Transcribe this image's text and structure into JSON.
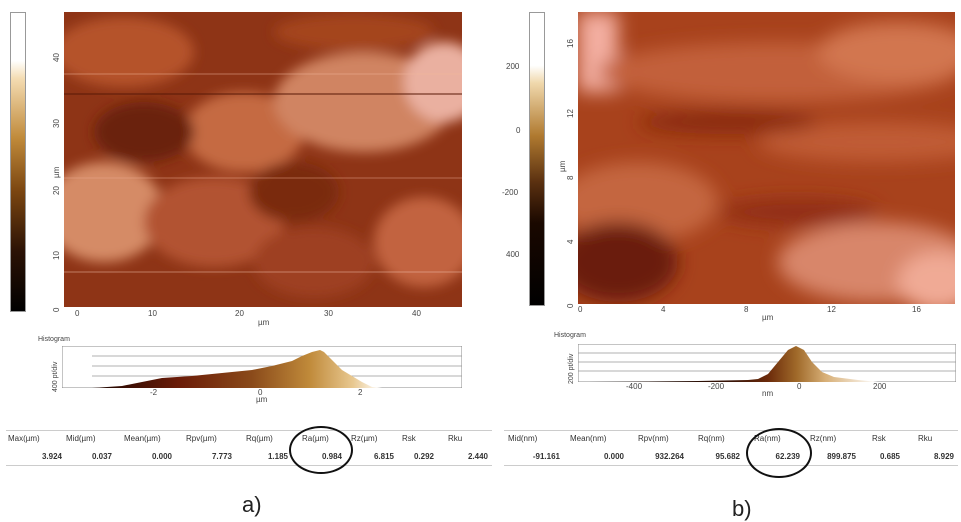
{
  "panel_a": {
    "label": "a)",
    "colorbar_colors": [
      "#ffffff",
      "#f4dcb2",
      "#c08a3a",
      "#7a4510",
      "#2b1205",
      "#000000"
    ],
    "map_colors": [
      "#5a1a08",
      "#9a3d1c",
      "#c86b45",
      "#eaa78c"
    ],
    "y_ticks": [
      "0",
      "10",
      "20",
      "30",
      "40"
    ],
    "y_unit": "µm",
    "x_ticks": [
      "0",
      "10",
      "20",
      "30",
      "40"
    ],
    "x_unit": "µm",
    "histogram": {
      "title": "Histogram",
      "y_label": "400 pt/div",
      "x_ticks": [
        "-2",
        "0",
        "2"
      ],
      "x_unit": "µm"
    },
    "stats": {
      "headers": [
        "Max(µm)",
        "Mid(µm)",
        "Mean(µm)",
        "Rpv(µm)",
        "Rq(µm)",
        "Ra(µm)",
        "Rz(µm)",
        "Rsk",
        "Rku"
      ],
      "values": [
        "3.924",
        "0.037",
        "0.000",
        "7.773",
        "1.185",
        "0.984",
        "6.815",
        "0.292",
        "2.440"
      ]
    }
  },
  "panel_b": {
    "label": "b)",
    "colorbar_ticks": [
      "200",
      "0",
      "-200",
      "400"
    ],
    "map_colors": [
      "#6b1c08",
      "#a5401a",
      "#d27650",
      "#f0aa90"
    ],
    "y_ticks": [
      "0",
      "4",
      "8",
      "12",
      "16"
    ],
    "y_unit": "µm",
    "x_ticks": [
      "0",
      "4",
      "8",
      "12",
      "16"
    ],
    "x_unit": "µm",
    "histogram": {
      "title": "Histogram",
      "y_label": "200 pt/div",
      "x_ticks": [
        "-400",
        "-200",
        "0",
        "200"
      ],
      "x_unit": "nm"
    },
    "stats": {
      "headers": [
        "Mid(nm)",
        "Mean(nm)",
        "Rpv(nm)",
        "Rq(nm)",
        "Ra(nm)",
        "Rz(nm)",
        "Rsk",
        "Rku"
      ],
      "values": [
        "-91.161",
        "0.000",
        "932.264",
        "95.682",
        "62.239",
        "899.875",
        "0.685",
        "8.929"
      ]
    }
  }
}
